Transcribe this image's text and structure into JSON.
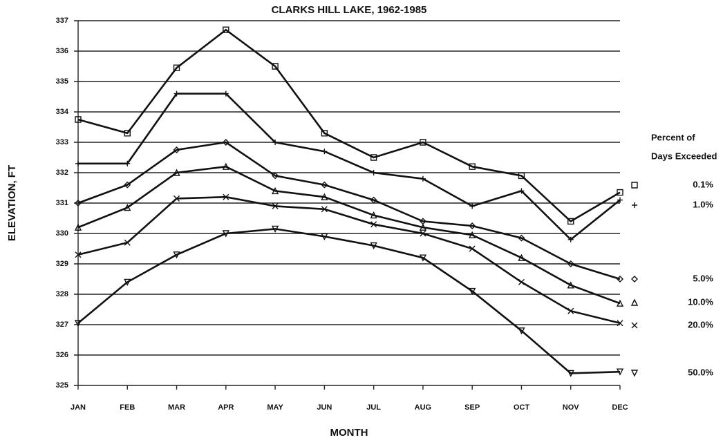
{
  "chart_data": {
    "type": "line",
    "title": "CLARKS HILL LAKE, 1962-1985",
    "xlabel": "MONTH",
    "ylabel": "ELEVATION, FT",
    "legend_title": [
      "Percent of",
      "Days Exceeded"
    ],
    "categories": [
      "JAN",
      "FEB",
      "MAR",
      "APR",
      "MAY",
      "JUN",
      "JUL",
      "AUG",
      "SEP",
      "OCT",
      "NOV",
      "DEC"
    ],
    "ylim": [
      325,
      337
    ],
    "yticks": [
      325,
      326,
      327,
      328,
      329,
      330,
      331,
      332,
      333,
      334,
      335,
      336,
      337
    ],
    "grid": true,
    "legend": "right",
    "series": [
      {
        "name": "0.1%",
        "color": "#111111",
        "marker": "square",
        "values": [
          333.75,
          333.3,
          335.45,
          336.7,
          335.5,
          333.3,
          332.5,
          333.0,
          332.2,
          331.9,
          330.4,
          331.35
        ]
      },
      {
        "name": "1.0%",
        "color": "#111111",
        "marker": "plus",
        "values": [
          332.3,
          332.3,
          334.6,
          334.6,
          333.0,
          332.7,
          332.0,
          331.8,
          330.9,
          331.4,
          329.8,
          331.1
        ]
      },
      {
        "name": "5.0%",
        "color": "#111111",
        "marker": "diamond",
        "values": [
          331.0,
          331.6,
          332.75,
          333.0,
          331.9,
          331.6,
          331.1,
          330.4,
          330.25,
          329.85,
          329.0,
          328.5
        ]
      },
      {
        "name": "10.0%",
        "color": "#111111",
        "marker": "triangle",
        "values": [
          330.2,
          330.85,
          332.0,
          332.2,
          331.4,
          331.2,
          330.6,
          330.2,
          329.95,
          329.2,
          328.3,
          327.7
        ]
      },
      {
        "name": "20.0%",
        "color": "#111111",
        "marker": "x",
        "values": [
          329.3,
          329.7,
          331.15,
          331.2,
          330.9,
          330.8,
          330.3,
          330.0,
          329.5,
          328.4,
          327.45,
          327.05
        ]
      },
      {
        "name": "50.0%",
        "color": "#111111",
        "marker": "triangle-down",
        "values": [
          327.05,
          328.4,
          329.3,
          330.0,
          330.15,
          329.9,
          329.6,
          329.2,
          328.1,
          326.8,
          325.4,
          325.45
        ]
      }
    ]
  }
}
